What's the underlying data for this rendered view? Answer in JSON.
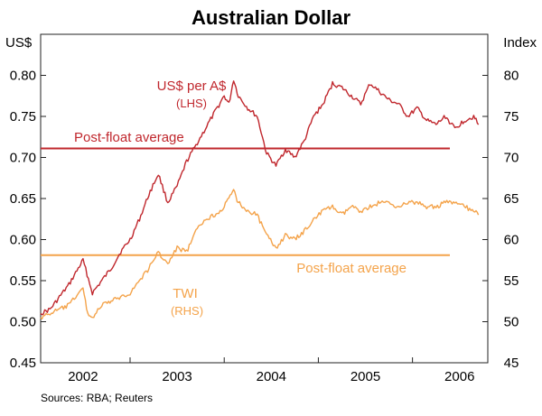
{
  "chart_data": {
    "type": "line",
    "title": "Australian Dollar",
    "source": "Sources: RBA; Reuters",
    "left_axis": {
      "unit": "US$",
      "min": 0.45,
      "max": 0.85,
      "ticks": [
        "0.80",
        "0.75",
        "0.70",
        "0.65",
        "0.60",
        "0.55",
        "0.50",
        "0.45"
      ],
      "tick_values": [
        0.8,
        0.75,
        0.7,
        0.65,
        0.6,
        0.55,
        0.5,
        0.45
      ]
    },
    "right_axis": {
      "unit": "Index",
      "min": 45,
      "max": 85,
      "ticks": [
        "80",
        "75",
        "70",
        "65",
        "60",
        "55",
        "50",
        "45"
      ],
      "tick_values": [
        80,
        75,
        70,
        65,
        60,
        55,
        50,
        45
      ]
    },
    "x_axis": {
      "min": 2001.55,
      "max": 2006.3,
      "labels": [
        "2002",
        "2003",
        "2004",
        "2005",
        "2006"
      ],
      "label_values": [
        2002.0,
        2003.0,
        2004.0,
        2005.0,
        2006.0
      ],
      "year_boundaries": [
        2002.5,
        2003.5,
        2004.5,
        2005.5
      ]
    },
    "series": [
      {
        "name": "US$ per A$",
        "axis": "left",
        "color": "#c0272d",
        "label": "US$ per A$",
        "sublabel": "(LHS)",
        "x": [
          2001.55,
          2001.65,
          2001.75,
          2001.85,
          2001.95,
          2002.0,
          2002.1,
          2002.2,
          2002.3,
          2002.4,
          2002.5,
          2002.6,
          2002.7,
          2002.8,
          2002.9,
          2003.0,
          2003.1,
          2003.2,
          2003.3,
          2003.4,
          2003.5,
          2003.55,
          2003.6,
          2003.65,
          2003.75,
          2003.85,
          2003.95,
          2004.05,
          2004.15,
          2004.25,
          2004.35,
          2004.45,
          2004.55,
          2004.65,
          2004.75,
          2004.85,
          2004.95,
          2005.05,
          2005.15,
          2005.25,
          2005.35,
          2005.45,
          2005.55,
          2005.65,
          2005.75,
          2005.85,
          2005.95,
          2006.05,
          2006.15,
          2006.2
        ],
        "values": [
          0.51,
          0.515,
          0.53,
          0.545,
          0.565,
          0.575,
          0.535,
          0.55,
          0.565,
          0.585,
          0.6,
          0.625,
          0.655,
          0.68,
          0.645,
          0.665,
          0.695,
          0.715,
          0.735,
          0.755,
          0.775,
          0.765,
          0.795,
          0.775,
          0.76,
          0.75,
          0.705,
          0.69,
          0.71,
          0.7,
          0.72,
          0.75,
          0.765,
          0.79,
          0.785,
          0.775,
          0.765,
          0.79,
          0.78,
          0.77,
          0.765,
          0.75,
          0.76,
          0.745,
          0.74,
          0.75,
          0.735,
          0.745,
          0.75,
          0.74
        ]
      },
      {
        "name": "TWI",
        "axis": "right",
        "color": "#f4a34a",
        "label": "TWI",
        "sublabel": "(RHS)",
        "x": [
          2001.55,
          2001.65,
          2001.75,
          2001.85,
          2001.95,
          2002.0,
          2002.05,
          2002.1,
          2002.2,
          2002.3,
          2002.4,
          2002.5,
          2002.6,
          2002.7,
          2002.8,
          2002.9,
          2003.0,
          2003.1,
          2003.2,
          2003.3,
          2003.4,
          2003.5,
          2003.55,
          2003.6,
          2003.65,
          2003.75,
          2003.85,
          2003.95,
          2004.05,
          2004.15,
          2004.25,
          2004.35,
          2004.45,
          2004.55,
          2004.65,
          2004.75,
          2004.85,
          2004.95,
          2005.05,
          2005.15,
          2005.25,
          2005.35,
          2005.45,
          2005.55,
          2005.65,
          2005.75,
          2005.85,
          2005.95,
          2006.05,
          2006.15,
          2006.2
        ],
        "values": [
          50.5,
          51.0,
          51.5,
          52.0,
          53.5,
          54.0,
          51.0,
          50.5,
          52.0,
          52.5,
          53.0,
          53.5,
          55.0,
          56.5,
          58.5,
          57.0,
          59.0,
          58.5,
          61.0,
          62.5,
          63.0,
          64.0,
          65.0,
          66.0,
          64.5,
          63.5,
          63.0,
          60.5,
          59.0,
          60.5,
          60.0,
          61.0,
          62.5,
          63.5,
          64.0,
          63.0,
          64.0,
          63.5,
          64.0,
          64.5,
          64.5,
          64.0,
          64.5,
          64.5,
          64.0,
          64.0,
          64.5,
          64.5,
          64.0,
          63.5,
          63.0
        ]
      }
    ],
    "reference_lines": [
      {
        "name": "Post-float average",
        "label": "Post-float average",
        "axis": "left",
        "value": 0.711,
        "color": "#c0272d"
      },
      {
        "name": "Post-float average",
        "label": "Post-float average",
        "axis": "left",
        "value": 0.581,
        "color": "#f4a34a"
      }
    ],
    "grid": false
  }
}
